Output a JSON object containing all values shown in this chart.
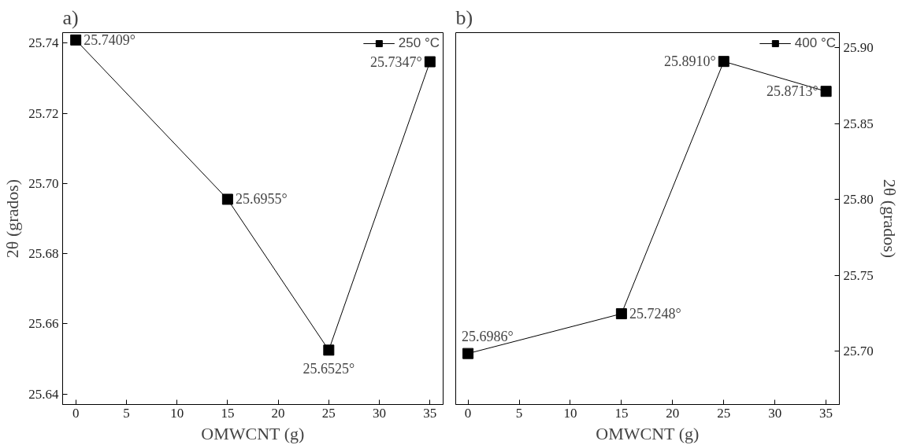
{
  "chart_data": [
    {
      "type": "line",
      "annotations": [
        "a)"
      ],
      "xlabel": "OMWCNT (g)",
      "ylabel": "2θ (grados)",
      "x": [
        0,
        15,
        25,
        35
      ],
      "xlim": [
        -1.3,
        36.3
      ],
      "xticks": [
        0,
        5,
        10,
        15,
        20,
        25,
        30,
        35
      ],
      "ylim": [
        25.637,
        25.743
      ],
      "yticks": [
        25.64,
        25.66,
        25.68,
        {
          "value": 25.7,
          "label": "25.70"
        },
        25.72,
        25.74
      ],
      "marker": "square",
      "legend": "top right",
      "grid": false,
      "series": [
        {
          "name": "250 °C",
          "color": "#000000",
          "values": [
            25.7409,
            25.6955,
            25.6525,
            25.7347
          ],
          "value_labels": [
            "25.7409°",
            "25.6955°",
            "25.6525°",
            "25.7347°"
          ]
        }
      ]
    },
    {
      "type": "line",
      "annotations": [
        "b)"
      ],
      "xlabel": "OMWCNT (g)",
      "y2label": "2θ (grados)",
      "x": [
        0,
        15,
        25,
        35
      ],
      "xlim": [
        -1.2,
        36.3
      ],
      "xticks": [
        0,
        5,
        10,
        15,
        20,
        25,
        30,
        35
      ],
      "y2lim": [
        25.665,
        25.91
      ],
      "y2ticks": [
        {
          "value": 25.7,
          "label": "25.70"
        },
        25.75,
        {
          "value": 25.8,
          "label": "25.80"
        },
        25.85,
        {
          "value": 25.9,
          "label": "25.90"
        }
      ],
      "marker": "square",
      "legend": "top right",
      "grid": false,
      "series": [
        {
          "name": "400 °C",
          "color": "#000000",
          "axis": "y2",
          "values": [
            25.6986,
            25.7248,
            25.891,
            25.8713
          ],
          "value_labels": [
            "25.6986°",
            "25.7248°",
            "25.8910°",
            "25.8713°"
          ]
        }
      ]
    }
  ]
}
